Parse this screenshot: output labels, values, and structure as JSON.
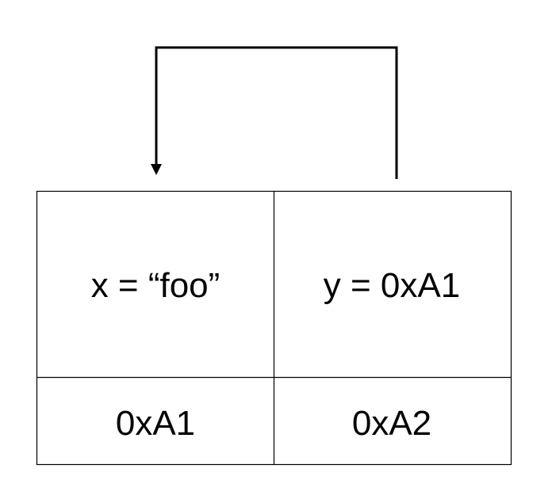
{
  "memory_diagram": {
    "cells": [
      {
        "value": "x = “foo”",
        "address": "0xA1"
      },
      {
        "value": "y = 0xA1",
        "address": "0xA2"
      }
    ],
    "pointer": {
      "from": "y = 0xA1",
      "to": "0xA1"
    }
  },
  "colors": {
    "line": "#000000",
    "background": "#ffffff"
  }
}
